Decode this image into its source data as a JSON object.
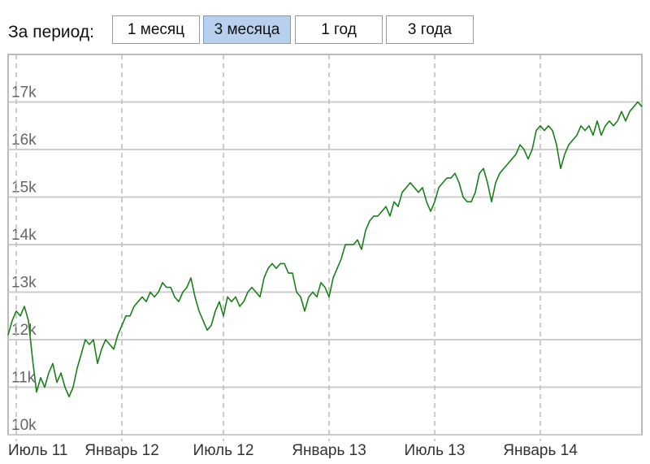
{
  "controls": {
    "period_label": "За период:",
    "buttons": [
      "1 месяц",
      "3 месяца",
      "1 год",
      "3 года"
    ],
    "selected": 1,
    "selected_color": "#b8d0ee"
  },
  "chart_data": {
    "type": "line",
    "categories": [
      null,
      null,
      "Июль 11",
      null,
      null,
      null,
      null,
      null,
      null,
      null,
      null,
      null,
      null,
      null,
      null,
      null,
      null,
      null,
      null,
      null,
      null,
      null,
      null,
      null,
      null,
      null,
      null,
      null,
      "Январь 12",
      null,
      null,
      null,
      null,
      null,
      null,
      null,
      null,
      null,
      null,
      null,
      null,
      null,
      null,
      null,
      null,
      null,
      null,
      null,
      null,
      null,
      null,
      null,
      null,
      "Июль 12",
      null,
      null,
      null,
      null,
      null,
      null,
      null,
      null,
      null,
      null,
      null,
      null,
      null,
      null,
      null,
      null,
      null,
      null,
      null,
      null,
      null,
      null,
      null,
      null,
      null,
      "Январь 13",
      null,
      null,
      null,
      null,
      null,
      null,
      null,
      null,
      null,
      null,
      null,
      null,
      null,
      null,
      null,
      null,
      null,
      null,
      null,
      null,
      null,
      null,
      null,
      null,
      null,
      "Июль 13",
      null,
      null,
      null,
      null,
      null,
      null,
      null,
      null,
      null,
      null,
      null,
      null,
      null,
      null,
      null,
      null,
      null,
      null,
      null,
      null,
      null,
      null,
      null,
      null,
      null,
      "Январь 14",
      null,
      null,
      null,
      null,
      null,
      null,
      null,
      null,
      null,
      null,
      null,
      null,
      null,
      null,
      null,
      null,
      null,
      null,
      null,
      null,
      null,
      null,
      null,
      null,
      null
    ],
    "series": [
      {
        "color": "#1a801a",
        "values": [
          12100,
          12400,
          12600,
          12500,
          12700,
          12400,
          11600,
          10900,
          11200,
          11000,
          11300,
          11500,
          11100,
          11300,
          11000,
          10800,
          11000,
          11400,
          11700,
          12000,
          11900,
          12000,
          11500,
          11800,
          12000,
          11900,
          11800,
          12100,
          12300,
          12500,
          12500,
          12700,
          12800,
          12900,
          12800,
          13000,
          12900,
          13000,
          13200,
          13100,
          13100,
          12900,
          12800,
          13000,
          13100,
          13300,
          12900,
          12600,
          12400,
          12200,
          12300,
          12600,
          12800,
          12500,
          12900,
          12800,
          12900,
          12700,
          12800,
          13000,
          13100,
          13000,
          12900,
          13300,
          13500,
          13600,
          13500,
          13600,
          13600,
          13400,
          13400,
          13000,
          12900,
          12600,
          12900,
          13000,
          12900,
          13200,
          13100,
          12900,
          13300,
          13500,
          13700,
          14000,
          14000,
          14000,
          14100,
          13900,
          14300,
          14500,
          14600,
          14600,
          14700,
          14800,
          14600,
          14900,
          14800,
          15100,
          15200,
          15300,
          15200,
          15100,
          15200,
          14900,
          14700,
          14900,
          15200,
          15300,
          15400,
          15400,
          15500,
          15300,
          15000,
          14900,
          14900,
          15100,
          15500,
          15600,
          15300,
          14900,
          15300,
          15500,
          15600,
          15700,
          15800,
          15900,
          16100,
          16000,
          15800,
          16000,
          16400,
          16500,
          16400,
          16500,
          16400,
          16100,
          15600,
          15900,
          16100,
          16200,
          16300,
          16500,
          16400,
          16500,
          16300,
          16600,
          16300,
          16500,
          16600,
          16500,
          16600,
          16800,
          16600,
          16800,
          16900,
          17000,
          16900
        ]
      }
    ],
    "ylim": [
      10000,
      18000
    ],
    "yticks": [
      {
        "value": 10000,
        "label": "10k"
      },
      {
        "value": 11000,
        "label": "11k"
      },
      {
        "value": 12000,
        "label": "12k"
      },
      {
        "value": 13000,
        "label": "13k"
      },
      {
        "value": 14000,
        "label": "14k"
      },
      {
        "value": 15000,
        "label": "15k"
      },
      {
        "value": 16000,
        "label": "16k"
      },
      {
        "value": 17000,
        "label": "17k"
      }
    ],
    "grid": true
  }
}
